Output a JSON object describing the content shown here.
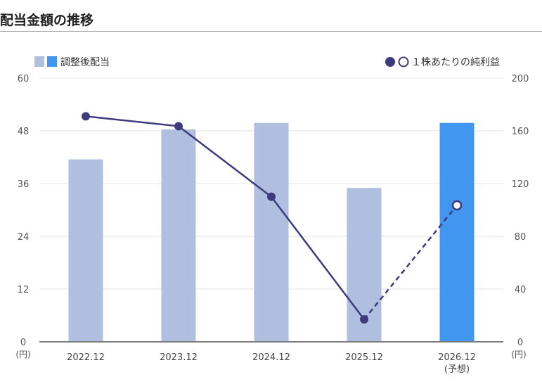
{
  "section_title": "配当金額の推移",
  "chart_data": {
    "type": "bar",
    "categories": [
      "2022.12",
      "2023.12",
      "2024.12",
      "2025.12",
      "2026.12"
    ],
    "category_notes": [
      "",
      "",
      "",
      "",
      "(予想)"
    ],
    "series": [
      {
        "name": "調整後配当",
        "type": "bar",
        "axis": "left",
        "values": [
          41.5,
          48.3,
          49.8,
          35.0,
          49.8
        ],
        "colors": [
          "#b0bfe0",
          "#b0bfe0",
          "#b0bfe0",
          "#b0bfe0",
          "#4196f0"
        ]
      },
      {
        "name": "１株あたりの純利益",
        "type": "line",
        "axis": "right",
        "values": [
          171,
          163.5,
          110,
          17,
          103.5
        ],
        "color": "#3d3a7e",
        "forecast_from_index": 3
      }
    ],
    "left_axis": {
      "min": 0,
      "max": 60,
      "ticks": [
        0,
        12,
        24,
        36,
        48,
        60
      ],
      "unit": "(円)"
    },
    "right_axis": {
      "min": 0,
      "max": 200,
      "ticks": [
        0,
        40,
        80,
        120,
        160,
        200
      ],
      "unit": "(円)"
    },
    "legend": {
      "bar_label": "調整後配当",
      "line_label": "１株あたりの純利益"
    },
    "grid": true
  }
}
